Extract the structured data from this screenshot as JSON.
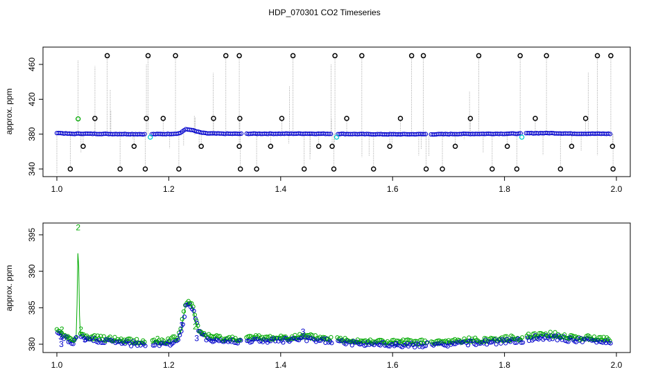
{
  "chart_data": [
    {
      "type": "scatter",
      "title": "HDP_070301  CO2 Timeseries",
      "xlabel": "",
      "ylabel": "approx. ppm",
      "xlim": [
        1.0,
        2.0
      ],
      "ylim": [
        335,
        475
      ],
      "x_ticks": [
        "1.0",
        "1.2",
        "1.4",
        "1.6",
        "1.8",
        "2.0"
      ],
      "y_ticks": [
        "340",
        "380",
        "420",
        "460"
      ],
      "colors": {
        "main": "#0000cc",
        "spike": "#000000",
        "flag": "#00cccc",
        "high": "#00aa00",
        "drop": "#888888"
      },
      "baseline": [
        [
          1.0,
          381.5
        ],
        [
          1.01,
          381.0
        ],
        [
          1.02,
          380.5
        ],
        [
          1.03,
          380.3
        ],
        [
          1.04,
          380.6
        ],
        [
          1.06,
          380.4
        ],
        [
          1.1,
          380.2
        ],
        [
          1.15,
          380.0
        ],
        [
          1.16,
          379.8
        ],
        [
          1.17,
          380.0
        ],
        [
          1.2,
          380.2
        ],
        [
          1.21,
          380.5
        ],
        [
          1.22,
          381.0
        ],
        [
          1.225,
          383.5
        ],
        [
          1.23,
          385.5
        ],
        [
          1.24,
          385.0
        ],
        [
          1.25,
          383.0
        ],
        [
          1.26,
          381.5
        ],
        [
          1.27,
          380.8
        ],
        [
          1.3,
          380.5
        ],
        [
          1.33,
          380.4
        ],
        [
          1.34,
          380.5
        ],
        [
          1.4,
          380.5
        ],
        [
          1.44,
          380.6
        ],
        [
          1.49,
          380.4
        ],
        [
          1.5,
          380.3
        ],
        [
          1.55,
          380.0
        ],
        [
          1.6,
          379.8
        ],
        [
          1.66,
          380.0
        ],
        [
          1.67,
          379.8
        ],
        [
          1.72,
          380.2
        ],
        [
          1.8,
          380.5
        ],
        [
          1.83,
          380.6
        ],
        [
          1.84,
          381.0
        ],
        [
          1.88,
          381.2
        ],
        [
          1.92,
          380.6
        ],
        [
          1.99,
          380.4
        ]
      ],
      "spikes_high": [
        1.09,
        1.163,
        1.212,
        1.302,
        1.326,
        1.422,
        1.497,
        1.545,
        1.634,
        1.655,
        1.754,
        1.828,
        1.875,
        1.966,
        1.99
      ],
      "spikes_low": [
        1.024,
        1.113,
        1.158,
        1.218,
        1.328,
        1.357,
        1.442,
        1.495,
        1.566,
        1.66,
        1.689,
        1.778,
        1.822,
        1.9,
        1.994
      ],
      "spikes_mid_up": [
        1.068,
        1.16,
        1.19,
        1.28,
        1.327,
        1.402,
        1.518,
        1.614,
        1.739,
        1.855,
        1.945
      ],
      "spikes_mid_down": [
        1.047,
        1.138,
        1.258,
        1.326,
        1.382,
        1.468,
        1.492,
        1.595,
        1.712,
        1.805,
        1.92,
        1.993
      ],
      "flag_points": [
        [
          1.167,
          376.5
        ],
        [
          1.5,
          376.5
        ],
        [
          1.831,
          376.5
        ]
      ],
      "high_point": [
        1.038,
        397.5
      ]
    },
    {
      "type": "scatter",
      "title": "",
      "xlabel": "",
      "ylabel": "approx. ppm",
      "xlim": [
        1.0,
        2.0
      ],
      "ylim": [
        379,
        397
      ],
      "x_ticks": [
        "1.0",
        "1.2",
        "1.4",
        "1.6",
        "1.8",
        "2.0"
      ],
      "y_ticks": [
        "380",
        "385",
        "390",
        "395"
      ],
      "series": [
        {
          "name": "2",
          "color": "#00aa00"
        },
        {
          "name": "3",
          "color": "#0000cc"
        }
      ],
      "labels": [
        {
          "text": "2",
          "x": 1.038,
          "y": 396.0,
          "color": "#00aa00"
        },
        {
          "text": "2",
          "x": 1.043,
          "y": 382.0,
          "color": "#00aa00"
        },
        {
          "text": "2",
          "x": 1.009,
          "y": 382.0,
          "color": "#00aa00"
        },
        {
          "text": "2",
          "x": 1.18,
          "y": 380.7,
          "color": "#00aa00"
        },
        {
          "text": "2",
          "x": 1.247,
          "y": 382.4,
          "color": "#00aa00"
        },
        {
          "text": "3",
          "x": 1.007,
          "y": 381.0,
          "color": "#0000cc"
        },
        {
          "text": "3",
          "x": 1.008,
          "y": 380.0,
          "color": "#0000cc"
        },
        {
          "text": "3",
          "x": 1.05,
          "y": 380.6,
          "color": "#0000cc"
        },
        {
          "text": "3",
          "x": 1.223,
          "y": 382.6,
          "color": "#0000cc"
        },
        {
          "text": "3",
          "x": 1.25,
          "y": 380.8,
          "color": "#0000cc"
        },
        {
          "text": "3",
          "x": 1.44,
          "y": 381.7,
          "color": "#0000cc"
        },
        {
          "text": "3",
          "x": 1.606,
          "y": 380.0,
          "color": "#0000cc"
        }
      ],
      "trend": [
        [
          1.0,
          381.8
        ],
        [
          1.01,
          381.2
        ],
        [
          1.02,
          380.6
        ],
        [
          1.03,
          380.4
        ],
        [
          1.035,
          381.0
        ],
        [
          1.038,
          395.0
        ],
        [
          1.041,
          381.5
        ],
        [
          1.05,
          380.7
        ],
        [
          1.07,
          380.6
        ],
        [
          1.1,
          380.4
        ],
        [
          1.13,
          380.2
        ],
        [
          1.16,
          380.0
        ],
        [
          1.17,
          380.1
        ],
        [
          1.2,
          380.2
        ],
        [
          1.215,
          380.6
        ],
        [
          1.222,
          382.0
        ],
        [
          1.23,
          385.5
        ],
        [
          1.237,
          385.5
        ],
        [
          1.243,
          384.8
        ],
        [
          1.248,
          383.0
        ],
        [
          1.255,
          381.5
        ],
        [
          1.27,
          380.8
        ],
        [
          1.3,
          380.5
        ],
        [
          1.33,
          380.5
        ],
        [
          1.34,
          380.6
        ],
        [
          1.38,
          380.6
        ],
        [
          1.42,
          380.7
        ],
        [
          1.44,
          380.8
        ],
        [
          1.49,
          380.5
        ],
        [
          1.5,
          380.4
        ],
        [
          1.55,
          380.2
        ],
        [
          1.6,
          380.0
        ],
        [
          1.66,
          380.0
        ],
        [
          1.67,
          379.9
        ],
        [
          1.72,
          380.2
        ],
        [
          1.78,
          380.4
        ],
        [
          1.83,
          380.6
        ],
        [
          1.84,
          380.9
        ],
        [
          1.88,
          381.1
        ],
        [
          1.92,
          380.7
        ],
        [
          1.99,
          380.4
        ]
      ]
    }
  ]
}
